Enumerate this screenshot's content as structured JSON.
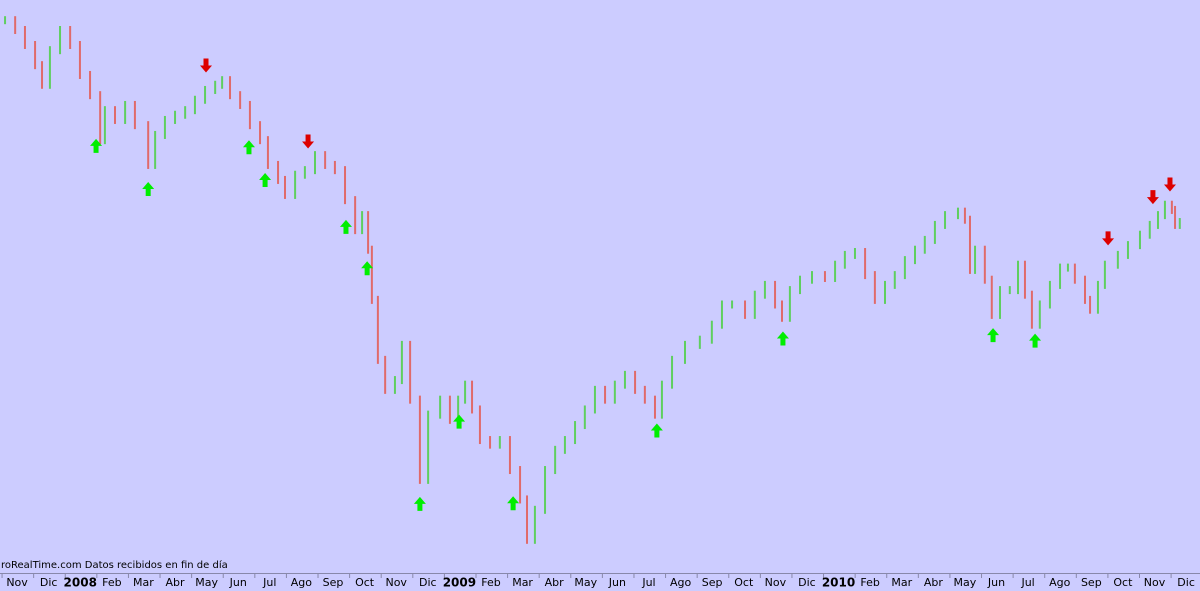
{
  "chart_data": {
    "type": "bar-line",
    "footer": "roRealTime.com  Datos recibidos en fin de día",
    "xlim": [
      -0.54,
      37.44
    ],
    "ylim": [
      6350,
      16060
    ],
    "xticks": [
      {
        "value": 0,
        "label": "Nov"
      },
      {
        "value": 1,
        "label": "Dic"
      },
      {
        "value": 2,
        "label": "2008"
      },
      {
        "value": 3,
        "label": "Feb"
      },
      {
        "value": 4,
        "label": "Mar"
      },
      {
        "value": 5,
        "label": "Abr"
      },
      {
        "value": 6,
        "label": "May"
      },
      {
        "value": 7,
        "label": "Jun"
      },
      {
        "value": 8,
        "label": "Jul"
      },
      {
        "value": 9,
        "label": "Ago"
      },
      {
        "value": 10,
        "label": "Sep"
      },
      {
        "value": 11,
        "label": "Oct"
      },
      {
        "value": 12,
        "label": "Nov"
      },
      {
        "value": 13,
        "label": "Dic"
      },
      {
        "value": 14,
        "label": "2009"
      },
      {
        "value": 15,
        "label": "Feb"
      },
      {
        "value": 16,
        "label": "Mar"
      },
      {
        "value": 17,
        "label": "Abr"
      },
      {
        "value": 18,
        "label": "May"
      },
      {
        "value": 19,
        "label": "Jun"
      },
      {
        "value": 20,
        "label": "Jul"
      },
      {
        "value": 21,
        "label": "Ago"
      },
      {
        "value": 22,
        "label": "Sep"
      },
      {
        "value": 23,
        "label": "Oct"
      },
      {
        "value": 24,
        "label": "Nov"
      },
      {
        "value": 25,
        "label": "Dic"
      },
      {
        "value": 26,
        "label": "2010"
      },
      {
        "value": 27,
        "label": "Feb"
      },
      {
        "value": 28,
        "label": "Mar"
      },
      {
        "value": 29,
        "label": "Abr"
      },
      {
        "value": 30,
        "label": "May"
      },
      {
        "value": 31,
        "label": "Jun"
      },
      {
        "value": 32,
        "label": "Jul"
      },
      {
        "value": 33,
        "label": "Ago"
      },
      {
        "value": 34,
        "label": "Sep"
      },
      {
        "value": 35,
        "label": "Oct"
      },
      {
        "value": 36,
        "label": "Nov"
      },
      {
        "value": 37,
        "label": "Dic"
      }
    ],
    "up_color": "#5fcf5f",
    "down_color": "#e06a6a",
    "buy_color": "#00ee00",
    "sell_color": "#dd0000",
    "series": [
      {
        "x": [
          -0.38,
          -0.06,
          0.25,
          0.57,
          0.79,
          1.04,
          1.36,
          1.68,
          1.99,
          2.31,
          2.63,
          2.78,
          3.1,
          3.42,
          3.73,
          4.15,
          4.37,
          4.68,
          5.0,
          5.32,
          5.63,
          5.95,
          6.27,
          6.49,
          6.74,
          7.06,
          7.37,
          7.69,
          7.94,
          8.26,
          8.48,
          8.8,
          9.11,
          9.43,
          9.75,
          10.06,
          10.38,
          10.7,
          10.92,
          11.11,
          11.23,
          11.42,
          11.65,
          11.96,
          12.18,
          12.44,
          12.75,
          13.01,
          13.39,
          13.7,
          13.96,
          14.18,
          14.4,
          14.65,
          14.97,
          15.28,
          15.6,
          15.92,
          16.14,
          16.39,
          16.71,
          17.03,
          17.34,
          17.66,
          17.97,
          18.29,
          18.61,
          18.92,
          19.24,
          19.56,
          19.87,
          20.19,
          20.41,
          20.73,
          21.14,
          21.61,
          21.99,
          22.31,
          22.63,
          23.04,
          23.35,
          23.67,
          23.99,
          24.21,
          24.46,
          24.78,
          25.16,
          25.57,
          25.89,
          26.2,
          26.52,
          26.84,
          27.15,
          27.47,
          27.78,
          28.1,
          28.42,
          28.73,
          29.05,
          29.37,
          29.78,
          30.0,
          30.16,
          30.32,
          30.63,
          30.85,
          31.11,
          31.42,
          31.68,
          31.9,
          32.12,
          32.37,
          32.69,
          33.01,
          33.26,
          33.48,
          33.8,
          33.96,
          34.21,
          34.43,
          34.84,
          35.16,
          35.54,
          35.85,
          36.11,
          36.33,
          36.55,
          36.65,
          36.8
        ],
        "values": [
          15710,
          15540,
          15280,
          14930,
          14590,
          15190,
          15540,
          15280,
          14760,
          14410,
          13630,
          14150,
          13980,
          14240,
          13890,
          13200,
          13720,
          13980,
          14070,
          14150,
          14330,
          14500,
          14590,
          14670,
          14410,
          14240,
          13890,
          13630,
          13200,
          12940,
          12680,
          13030,
          13110,
          13370,
          13200,
          13110,
          12590,
          12070,
          12330,
          11730,
          10860,
          9820,
          9300,
          9470,
          10080,
          9130,
          7740,
          8870,
          9130,
          8780,
          9130,
          9390,
          8960,
          8430,
          8350,
          8430,
          7910,
          7400,
          6700,
          7220,
          7910,
          8260,
          8430,
          8690,
          8960,
          9300,
          9130,
          9390,
          9560,
          9300,
          9130,
          8870,
          9390,
          9820,
          10080,
          10170,
          10430,
          10780,
          10780,
          10600,
          10950,
          11120,
          10780,
          10550,
          11030,
          11210,
          11290,
          11240,
          11470,
          11640,
          11690,
          11290,
          10860,
          11120,
          11290,
          11550,
          11730,
          11900,
          12160,
          12330,
          12390,
          12250,
          11380,
          11730,
          11210,
          10600,
          11030,
          11030,
          11470,
          10950,
          10430,
          10780,
          11120,
          11420,
          11420,
          11210,
          10860,
          10690,
          11120,
          11470,
          11640,
          11810,
          11990,
          12160,
          12330,
          12510,
          12420,
          12160,
          12210
        ]
      }
    ],
    "signals": [
      {
        "x": 2.5,
        "direction": "up"
      },
      {
        "x": 4.15,
        "direction": "up"
      },
      {
        "x": 7.34,
        "direction": "up"
      },
      {
        "x": 7.85,
        "direction": "up"
      },
      {
        "x": 10.41,
        "direction": "up"
      },
      {
        "x": 11.08,
        "direction": "up"
      },
      {
        "x": 12.75,
        "direction": "up"
      },
      {
        "x": 13.99,
        "direction": "up"
      },
      {
        "x": 15.7,
        "direction": "up"
      },
      {
        "x": 20.25,
        "direction": "up"
      },
      {
        "x": 24.24,
        "direction": "up"
      },
      {
        "x": 30.89,
        "direction": "up"
      },
      {
        "x": 32.22,
        "direction": "up"
      },
      {
        "x": 5.98,
        "direction": "down"
      },
      {
        "x": 9.21,
        "direction": "down"
      },
      {
        "x": 34.53,
        "direction": "down"
      },
      {
        "x": 35.95,
        "direction": "down"
      },
      {
        "x": 36.49,
        "direction": "down"
      }
    ]
  }
}
